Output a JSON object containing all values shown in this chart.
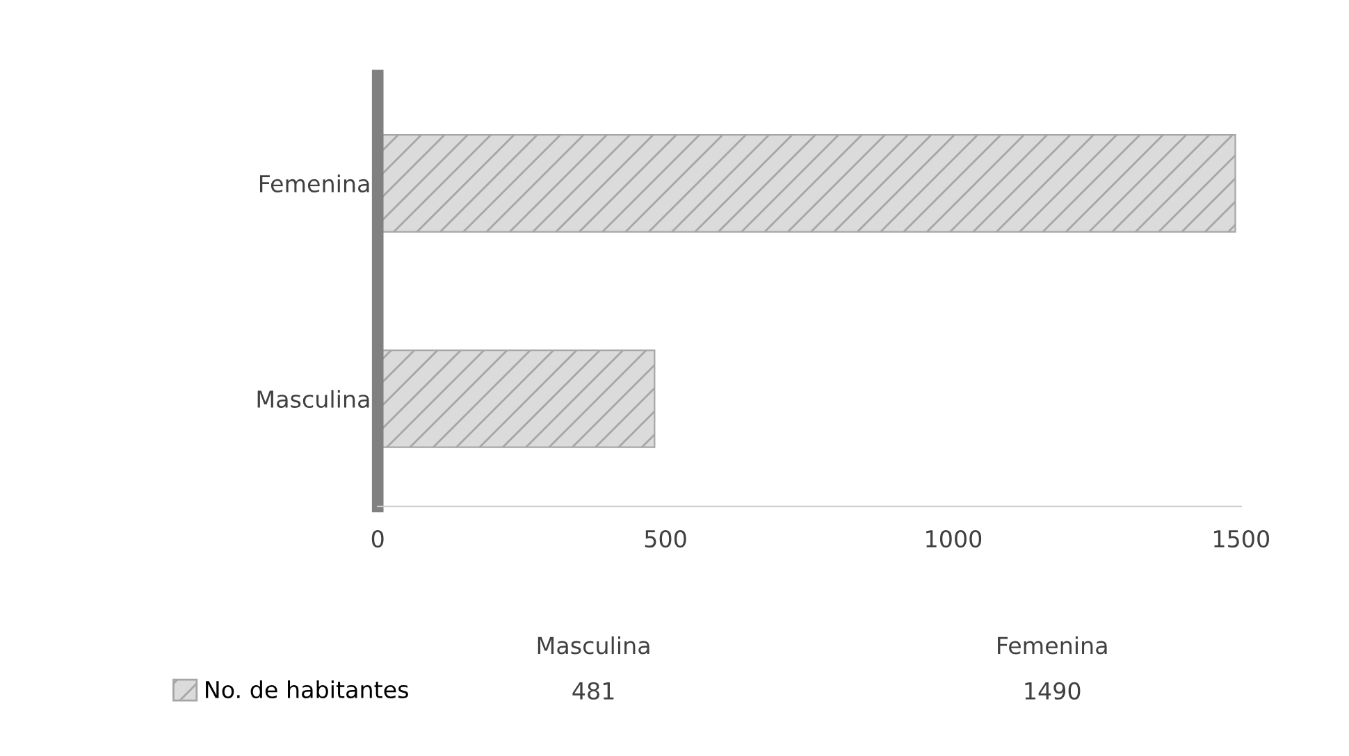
{
  "chart_data": {
    "type": "bar",
    "orientation": "horizontal",
    "categories": [
      "Femenina",
      "Masculina"
    ],
    "series": [
      {
        "name": "No. de habitantes",
        "color": "#a6a6a6",
        "values": [
          1490,
          481
        ]
      }
    ],
    "xlim": [
      0,
      1500
    ],
    "xticks": [
      0,
      500,
      1000,
      1500
    ],
    "annotations": [
      "Masculina",
      "Femenina",
      "481",
      "1490"
    ],
    "legend": "bottom left",
    "grid": false
  }
}
